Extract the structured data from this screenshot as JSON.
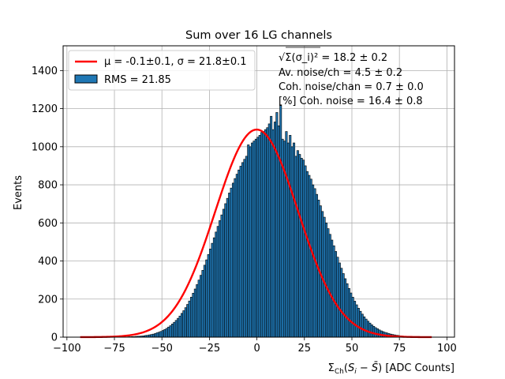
{
  "chart_data": {
    "type": "bar",
    "title": "Sum over 16 LG channels",
    "xlabel": "Σ_Ch(S_i − S̄) [ADC Counts]",
    "ylabel": "Events",
    "xlim": [
      -102,
      104
    ],
    "ylim": [
      0,
      1530
    ],
    "xticks": [
      -100,
      -75,
      -50,
      -25,
      0,
      25,
      50,
      75,
      100
    ],
    "xtick_labels": [
      "−100",
      "−75",
      "−50",
      "−25",
      "0",
      "25",
      "50",
      "75",
      "100"
    ],
    "yticks": [
      0,
      200,
      400,
      600,
      800,
      1000,
      1200,
      1400
    ],
    "ytick_labels": [
      "0",
      "200",
      "400",
      "600",
      "800",
      "1000",
      "1200",
      "1400"
    ],
    "grid": true,
    "histogram": {
      "name": "RMS = 21.85",
      "color": "#1f77b4",
      "edge_color": "#000000",
      "bin_width": 1,
      "bin_start": -93,
      "values": [
        0,
        0,
        0,
        0,
        0,
        0,
        0,
        0,
        0,
        0,
        0,
        0,
        0,
        0,
        0,
        0,
        0,
        0,
        0,
        1,
        1,
        1,
        1,
        1,
        1,
        2,
        2,
        3,
        3,
        4,
        5,
        5,
        6,
        7,
        9,
        10,
        12,
        14,
        16,
        19,
        23,
        26,
        30,
        35,
        40,
        46,
        53,
        60,
        69,
        78,
        88,
        99,
        111,
        125,
        139,
        155,
        172,
        190,
        210,
        231,
        253,
        276,
        300,
        325,
        351,
        378,
        406,
        434,
        463,
        493,
        522,
        552,
        582,
        612,
        642,
        672,
        701,
        729,
        757,
        783,
        809,
        833,
        856,
        878,
        898,
        917,
        934,
        950,
        1010,
        1000,
        1020,
        1030,
        1040,
        1050,
        1060,
        1075,
        1080,
        1090,
        1100,
        1120,
        1160,
        1090,
        1130,
        1180,
        1110,
        1220,
        1040,
        1030,
        1080,
        1020,
        1060,
        1000,
        1020,
        950,
        980,
        960,
        940,
        930,
        900,
        870,
        850,
        830,
        800,
        780,
        750,
        720,
        690,
        660,
        630,
        600,
        570,
        540,
        510,
        480,
        450,
        420,
        390,
        362,
        334,
        307,
        281,
        256,
        232,
        210,
        189,
        170,
        152,
        136,
        121,
        107,
        95,
        84,
        74,
        65,
        57,
        50,
        44,
        38,
        33,
        29,
        25,
        22,
        19,
        16,
        14,
        12,
        10,
        9,
        7,
        6,
        5,
        4,
        4,
        3,
        3,
        2,
        2,
        1,
        1,
        1,
        1,
        0,
        0,
        0,
        0,
        0,
        0,
        0,
        0,
        0,
        0,
        0,
        0,
        0,
        0,
        0,
        0
      ]
    },
    "fit": {
      "name": "μ = -0.1±0.1, σ = 21.8±0.1",
      "color": "#ff0000",
      "mu": -0.1,
      "sigma": 21.8,
      "amplitude": 1090,
      "x_range": [
        -93,
        92
      ]
    },
    "legend_position": "top-left",
    "annotations": [
      "√Σ(σ_i)² = 18.2 ± 0.2",
      "Av. noise/ch  = 4.5 ± 0.2",
      "Coh. noise/chan  = 0.7 ± 0.0",
      "[%] Coh. noise  = 16.4 ± 0.8"
    ]
  }
}
